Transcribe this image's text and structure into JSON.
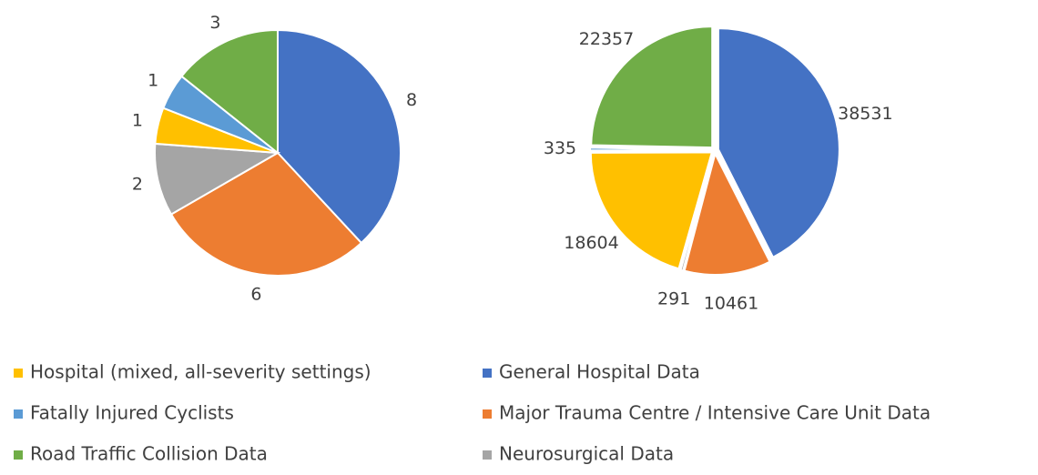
{
  "chart_data": [
    {
      "type": "pie",
      "categories": [
        "General Hospital Data",
        "Major Trauma Centre / Intensive Care Unit Data",
        "Neurosurgical Data",
        "Hospital (mixed, all-severity settings)",
        "Fatally Injured Cyclists",
        "Road Traffic Collision Data"
      ],
      "values": [
        8,
        6,
        2,
        1,
        1,
        3
      ],
      "colors": [
        "#4472c4",
        "#ed7d31",
        "#a5a5a5",
        "#ffc000",
        "#5b9bd5",
        "#70ad47"
      ]
    },
    {
      "type": "pie",
      "categories": [
        "General Hospital Data",
        "Major Trauma Centre / Intensive Care Unit Data",
        "Neurosurgical Data",
        "Hospital (mixed, all-severity settings)",
        "Fatally Injured Cyclists",
        "Road Traffic Collision Data"
      ],
      "values": [
        38531,
        10461,
        291,
        18604,
        335,
        22357
      ],
      "colors": [
        "#4472c4",
        "#ed7d31",
        "#a5a5a5",
        "#ffc000",
        "#5b9bd5",
        "#70ad47"
      ]
    }
  ]
}
